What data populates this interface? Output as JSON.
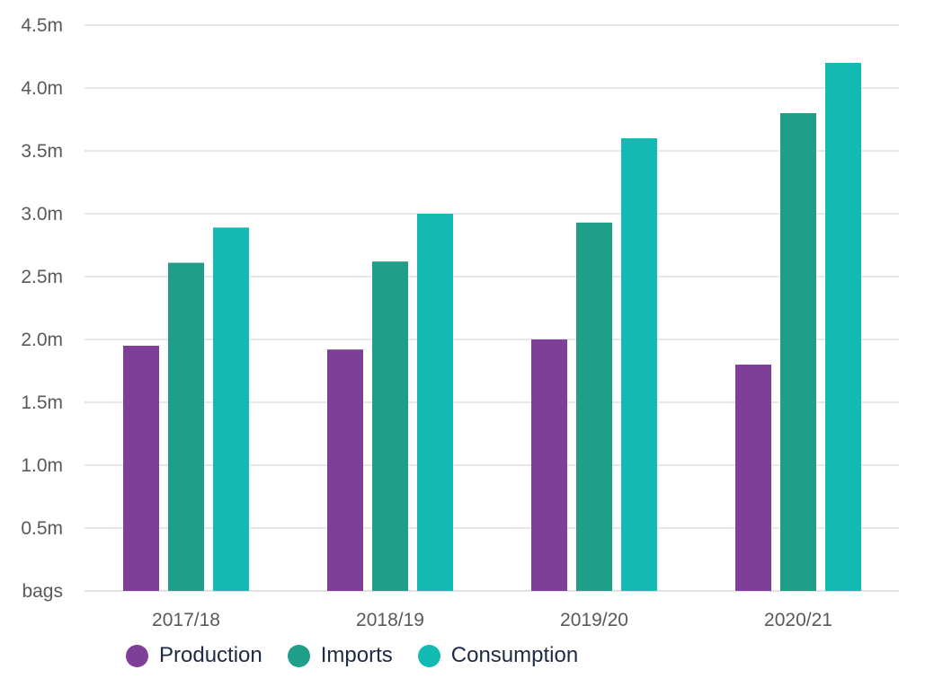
{
  "chart_data": {
    "type": "bar",
    "categories": [
      "2017/18",
      "2018/19",
      "2019/20",
      "2020/21"
    ],
    "series": [
      {
        "name": "Production",
        "color": "#7f3f98",
        "values": [
          1.95,
          1.92,
          2.0,
          1.8
        ]
      },
      {
        "name": "Imports",
        "color": "#1f9e89",
        "values": [
          2.61,
          2.62,
          2.93,
          3.8
        ]
      },
      {
        "name": "Consumption",
        "color": "#12bab3",
        "values": [
          2.89,
          3.0,
          3.6,
          4.2
        ]
      }
    ],
    "y_ticks": [
      {
        "value": 0,
        "label": "bags"
      },
      {
        "value": 0.5,
        "label": "0.5m"
      },
      {
        "value": 1.0,
        "label": "1.0m"
      },
      {
        "value": 1.5,
        "label": "1.5m"
      },
      {
        "value": 2.0,
        "label": "2.0m"
      },
      {
        "value": 2.5,
        "label": "2.5m"
      },
      {
        "value": 3.0,
        "label": "3.0m"
      },
      {
        "value": 3.5,
        "label": "3.5m"
      },
      {
        "value": 4.0,
        "label": "4.0m"
      },
      {
        "value": 4.5,
        "label": "4.5m"
      }
    ],
    "ylim": [
      0,
      4.5
    ],
    "grid": true,
    "legend_position": "bottom-left",
    "gridline_color": "#d9d9d9",
    "axis_label_color": "#595959"
  }
}
